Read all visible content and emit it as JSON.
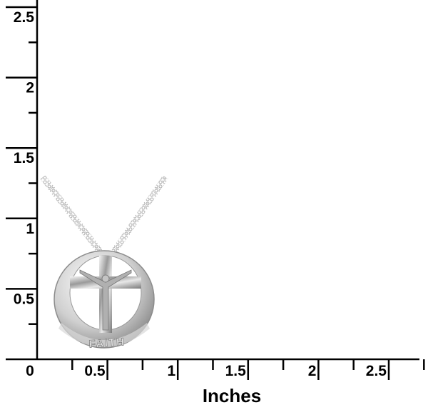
{
  "ruler": {
    "unit_label": "Inches",
    "x_ticks": [
      "0",
      "0.5",
      "1",
      "1.5",
      "2",
      "2.5"
    ],
    "y_ticks": [
      "0.5",
      "1",
      "1.5",
      "2",
      "2.5"
    ],
    "line_color": "#000000"
  },
  "product": {
    "engraving": "FAITH",
    "material_color": "#c8c8c8"
  }
}
